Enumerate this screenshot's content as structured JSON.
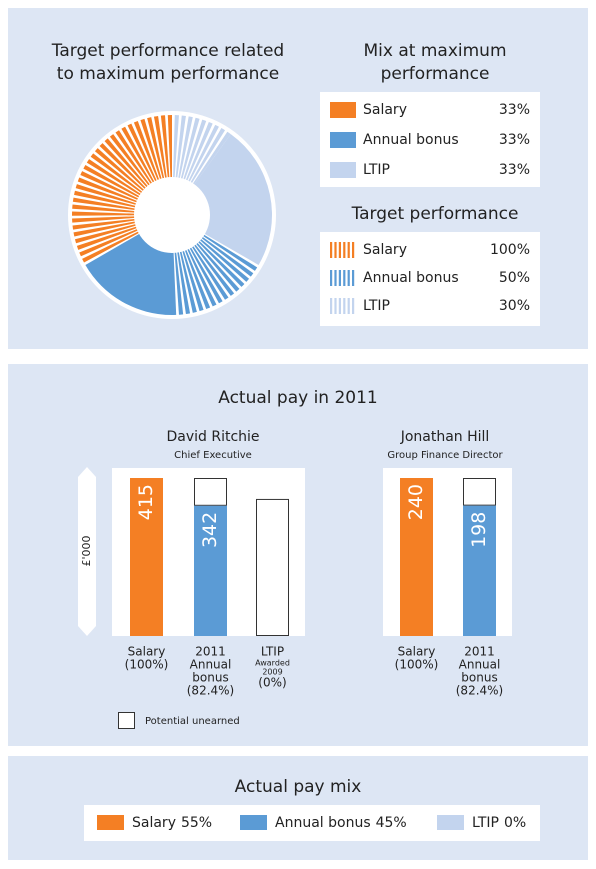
{
  "chart_data": [
    {
      "type": "pie",
      "title": "Target performance related to maximum performance",
      "categories": [
        "Salary",
        "Annual bonus",
        "LTIP"
      ],
      "colors": [
        "#f47f24",
        "#5b9bd5",
        "#c3d4ee"
      ],
      "legend_title": "Mix at maximum performance",
      "values": [
        33,
        33,
        33
      ],
      "value_labels": [
        "33%",
        "33%",
        "33%"
      ],
      "target_title": "Target performance",
      "target_values": [
        100,
        50,
        30
      ],
      "target_value_labels": [
        "100%",
        "50%",
        "30%"
      ]
    },
    {
      "type": "bar",
      "title": "Actual pay in 2011",
      "ylabel": "£'000",
      "potential_label": "Potential unearned",
      "colors": [
        "#f47f24",
        "#5b9bd5",
        "#5b9bd5"
      ],
      "groups": [
        {
          "name": "David Ritchie",
          "role": "Chief Executive",
          "categories": [
            [
              "Salary",
              "(100%)"
            ],
            [
              "2011",
              "Annual",
              "bonus",
              "(82.4%)"
            ],
            [
              "LTIP",
              [
                "Awarded",
                "2009"
              ],
              "(0%)"
            ]
          ],
          "values": [
            415,
            342,
            0
          ],
          "potential_unearned": [
            null,
            73,
            360
          ]
        },
        {
          "name": "Jonathan Hill",
          "role": "Group Finance Director",
          "categories": [
            [
              "Salary",
              "(100%)"
            ],
            [
              "2011",
              "Annual",
              "bonus",
              "(82.4%)"
            ]
          ],
          "values": [
            240,
            198
          ],
          "potential_unearned": [
            null,
            42
          ]
        }
      ]
    },
    {
      "type": "legend",
      "title": "Actual pay mix",
      "categories": [
        "Salary",
        "Annual bonus",
        "LTIP"
      ],
      "values": [
        55,
        45,
        0
      ],
      "value_labels": [
        "55%",
        "45%",
        "0%"
      ],
      "colors": [
        "#f47f24",
        "#5b9bd5",
        "#c3d4ee"
      ]
    }
  ]
}
